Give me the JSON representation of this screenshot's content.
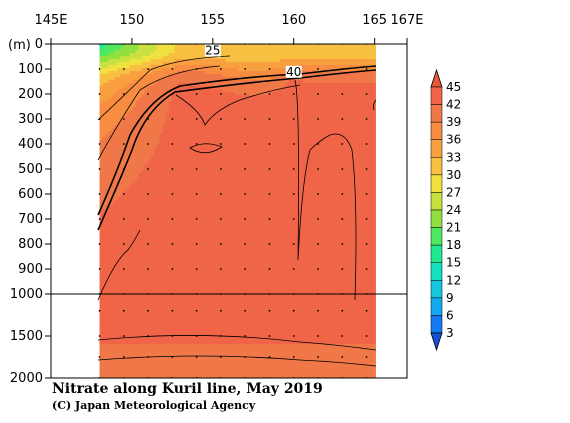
{
  "chart_data": {
    "type": "heatmap",
    "title": "Nitrate along Kuril line, May 2019",
    "credit": "(C) Japan Meteorological Agency",
    "x_ticks": [
      {
        "value": 145,
        "label": "145E"
      },
      {
        "value": 150,
        "label": "150"
      },
      {
        "value": 155,
        "label": "155"
      },
      {
        "value": 160,
        "label": "160"
      },
      {
        "value": 165,
        "label": "165"
      },
      {
        "value": 167,
        "label": "167E"
      }
    ],
    "xlim": [
      145,
      167
    ],
    "y_unit": "(m)",
    "y_ticks_upper": [
      0,
      100,
      200,
      300,
      400,
      500,
      600,
      700,
      800,
      900,
      1000
    ],
    "y_ticks_lower": [
      1500,
      2000
    ],
    "y_tick_labels": [
      "0",
      "100",
      "200",
      "300",
      "400",
      "500",
      "600",
      "700",
      "800",
      "900",
      "1000",
      "1500",
      "2000"
    ],
    "ylim": [
      0,
      2000
    ],
    "y_break": 1000,
    "data_x_range": [
      148,
      165
    ],
    "contour_labels": [
      {
        "text": "25",
        "lon": 155.0,
        "depth": 30
      },
      {
        "text": "40",
        "lon": 160.0,
        "depth": 115
      }
    ],
    "colorbar": {
      "min": 3,
      "max": 45,
      "ticks": [
        "45",
        "42",
        "39",
        "36",
        "33",
        "30",
        "27",
        "24",
        "21",
        "18",
        "15",
        "12",
        "9",
        "6",
        "3"
      ],
      "colors": [
        "#1450d8",
        "#1478f0",
        "#14a8f0",
        "#14c8e0",
        "#14e0c0",
        "#20e890",
        "#50e860",
        "#90e040",
        "#c8e040",
        "#f0e040",
        "#f8c040",
        "#f8a040",
        "#f88c40",
        "#f07848",
        "#f06448",
        "#e85838"
      ]
    },
    "stations": [
      148,
      149.5,
      151,
      152.5,
      154,
      155.5,
      157,
      158.5,
      160,
      161.5,
      163,
      164.5
    ],
    "sampled_depths": [
      0,
      100,
      200,
      300,
      400,
      500,
      600,
      700,
      800,
      900,
      1000,
      1200,
      1500,
      1750,
      2000
    ],
    "grid": false
  }
}
